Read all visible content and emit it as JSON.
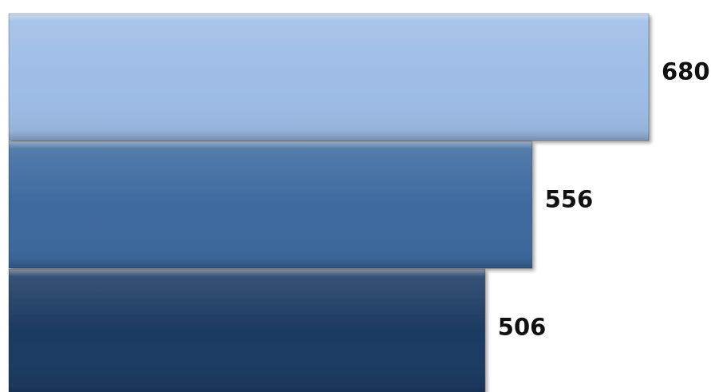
{
  "chart_data": {
    "type": "bar",
    "orientation": "horizontal",
    "categories": [
      "",
      "",
      ""
    ],
    "values": [
      680,
      556,
      506
    ],
    "data_labels": [
      "680",
      "556",
      "506"
    ],
    "colors": [
      "#9dbce6",
      "#3d6a9f",
      "#1c3a62"
    ],
    "xlim": [
      0,
      680
    ],
    "grid": false,
    "legend": "none"
  }
}
